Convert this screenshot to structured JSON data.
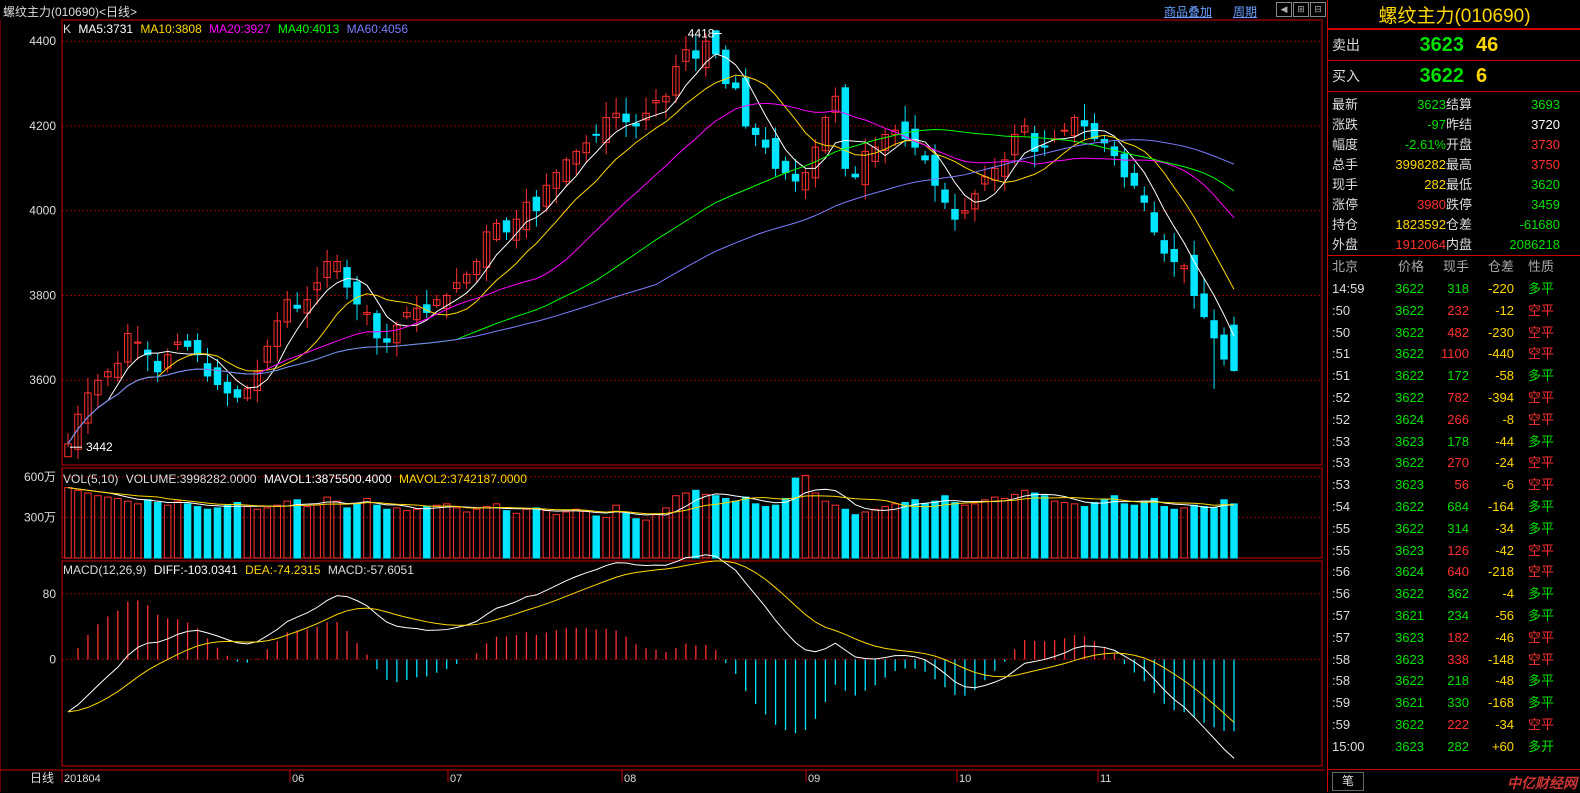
{
  "title": "螺纹主力(010690)<日线>",
  "nav": {
    "overlay_label": "商品叠加",
    "period_label": "周期"
  },
  "colors": {
    "up": "#ff3030",
    "down": "#00e5ff",
    "ma5": "#ffffff",
    "ma10": "#ffd700",
    "ma20": "#ff00ff",
    "ma40": "#00ff00",
    "ma60": "#7b7bff",
    "grid": "#8b0000"
  },
  "ma_legend": {
    "k": "K",
    "ma5": "MA5:3731",
    "ma10": "MA10:3808",
    "ma20": "MA20:3927",
    "ma40": "MA40:4013",
    "ma60": "MA60:4056"
  },
  "vol_legend": {
    "name": "VOL(5,10)",
    "volume": "VOLUME:3998282.0000",
    "mavol1": "MAVOL1:3875500.4000",
    "mavol2": "MAVOL2:3742187.0000"
  },
  "macd_legend": {
    "name": "MACD(12,26,9)",
    "diff": "DIFF:-103.0341",
    "dea": "DEA:-74.2315",
    "macd": "MACD:-57.6051"
  },
  "axes": {
    "price_ticks": [
      "4400",
      "4200",
      "4000",
      "3800",
      "3600"
    ],
    "vol_ticks": [
      "600万",
      "300万"
    ],
    "macd_ticks": [
      "80",
      "0"
    ],
    "period_label": "日线",
    "x_labels": [
      "201804",
      "06",
      "07",
      "08",
      "09",
      "10",
      "11"
    ]
  },
  "annotations": {
    "high": "4418",
    "low": "3442"
  },
  "chart_data": {
    "type": "candlestick",
    "price_ylim": [
      3400,
      4450
    ],
    "vol_ylim": [
      0,
      6500000
    ],
    "macd_ylim": [
      -130,
      120
    ],
    "closes": [
      3450,
      3520,
      3570,
      3600,
      3620,
      3640,
      3710,
      3690,
      3660,
      3620,
      3660,
      3690,
      3680,
      3660,
      3610,
      3590,
      3570,
      3560,
      3580,
      3620,
      3680,
      3740,
      3790,
      3770,
      3790,
      3830,
      3880,
      3880,
      3820,
      3780,
      3760,
      3700,
      3690,
      3730,
      3760,
      3770,
      3760,
      3790,
      3800,
      3830,
      3850,
      3880,
      3950,
      3970,
      3950,
      3980,
      4020,
      4000,
      4060,
      4090,
      4120,
      4140,
      4160,
      4180,
      4220,
      4230,
      4210,
      4200,
      4230,
      4260,
      4270,
      4340,
      4380,
      4360,
      4400,
      4370,
      4300,
      4290,
      4200,
      4180,
      4150,
      4100,
      4090,
      4070,
      4090,
      4150,
      4220,
      4270,
      4100,
      4080,
      4140,
      4150,
      4180,
      4190,
      4170,
      4150,
      4120,
      4060,
      4020,
      3980,
      4000,
      4040,
      4080,
      4100,
      4120,
      4180,
      4200,
      4140,
      4150,
      4170,
      4190,
      4220,
      4200,
      4170,
      4160,
      4130,
      4080,
      4060,
      4020,
      3950,
      3900,
      3880,
      3870,
      3800,
      3750,
      3700,
      3650,
      3623
    ],
    "volume_m": [
      5.2,
      5.0,
      4.8,
      4.6,
      4.5,
      4.4,
      4.2,
      4.0,
      4.3,
      4.1,
      3.9,
      4.2,
      4.0,
      3.8,
      3.6,
      3.7,
      3.9,
      4.1,
      3.8,
      3.6,
      3.7,
      3.9,
      4.2,
      4.3,
      3.8,
      3.9,
      4.5,
      4.2,
      3.7,
      4.0,
      4.4,
      3.9,
      3.6,
      3.7,
      3.5,
      3.6,
      3.8,
      3.9,
      4.0,
      3.7,
      3.4,
      3.6,
      3.8,
      4.0,
      3.5,
      3.3,
      3.6,
      3.7,
      3.5,
      3.2,
      3.4,
      3.6,
      3.5,
      3.1,
      3.0,
      3.9,
      3.3,
      2.9,
      2.8,
      3.2,
      3.7,
      4.6,
      4.8,
      5.0,
      4.7,
      4.6,
      4.4,
      4.2,
      4.5,
      4.0,
      3.8,
      3.9,
      4.4,
      5.9,
      6.1,
      4.8,
      4.2,
      3.9,
      3.6,
      3.2,
      3.4,
      3.6,
      3.8,
      4.0,
      4.1,
      4.3,
      4.0,
      4.2,
      4.6,
      4.1,
      3.9,
      4.0,
      4.3,
      4.5,
      4.4,
      4.7,
      5.0,
      4.8,
      4.6,
      4.2,
      4.1,
      4.0,
      3.8,
      4.1,
      4.3,
      4.6,
      4.0,
      3.9,
      4.2,
      4.4,
      3.8,
      3.6,
      3.7,
      3.9,
      3.8,
      3.7,
      4.3,
      4.0
    ]
  },
  "quote": {
    "name": "螺纹主力(010690)",
    "sell_label": "卖出",
    "sell_price": "3623",
    "sell_qty": "46",
    "buy_label": "买入",
    "buy_price": "3622",
    "buy_qty": "6",
    "fields": [
      [
        "最新",
        "3623",
        "结算",
        "3693"
      ],
      [
        "涨跌",
        "-97",
        "昨结",
        "3720"
      ],
      [
        "幅度",
        "-2.61%",
        "开盘",
        "3730"
      ],
      [
        "总手",
        "3998282",
        "最高",
        "3750"
      ],
      [
        "现手",
        "282",
        "最低",
        "3620"
      ],
      [
        "涨停",
        "3980",
        "跌停",
        "3459"
      ],
      [
        "持仓",
        "1823592",
        "仓差",
        "-61680"
      ],
      [
        "外盘",
        "1912064",
        "内盘",
        "2086218"
      ]
    ],
    "field_colors": [
      [
        "#00e000",
        "#00e000"
      ],
      [
        "#00e000",
        "#ffffff"
      ],
      [
        "#00e000",
        "#ff3030"
      ],
      [
        "#ffd700",
        "#ff3030"
      ],
      [
        "#ffd700",
        "#00e000"
      ],
      [
        "#ff3030",
        "#00e000"
      ],
      [
        "#ffd700",
        "#00e000"
      ],
      [
        "#ff3030",
        "#00e000"
      ]
    ]
  },
  "ticks_header": [
    "北京",
    "价格",
    "现手",
    "仓差",
    "性质"
  ],
  "ticks": [
    [
      "14:59",
      "3622",
      "318",
      "-220",
      "多平"
    ],
    [
      ":50",
      "3622",
      "232",
      "-12",
      "空平"
    ],
    [
      ":50",
      "3622",
      "482",
      "-230",
      "空平"
    ],
    [
      ":51",
      "3622",
      "1100",
      "-440",
      "空平"
    ],
    [
      ":51",
      "3622",
      "172",
      "-58",
      "多平"
    ],
    [
      ":52",
      "3622",
      "782",
      "-394",
      "空平"
    ],
    [
      ":52",
      "3624",
      "266",
      "-8",
      "空平"
    ],
    [
      ":53",
      "3623",
      "178",
      "-44",
      "多平"
    ],
    [
      ":53",
      "3622",
      "270",
      "-24",
      "空平"
    ],
    [
      ":53",
      "3623",
      "56",
      "-6",
      "空平"
    ],
    [
      ":54",
      "3622",
      "684",
      "-164",
      "多平"
    ],
    [
      ":55",
      "3622",
      "314",
      "-34",
      "多平"
    ],
    [
      ":55",
      "3623",
      "126",
      "-42",
      "空平"
    ],
    [
      ":56",
      "3624",
      "640",
      "-218",
      "空平"
    ],
    [
      ":56",
      "3622",
      "362",
      "-4",
      "多平"
    ],
    [
      ":57",
      "3621",
      "234",
      "-56",
      "多平"
    ],
    [
      ":57",
      "3623",
      "182",
      "-46",
      "空平"
    ],
    [
      ":58",
      "3623",
      "338",
      "-148",
      "空平"
    ],
    [
      ":58",
      "3622",
      "218",
      "-48",
      "多平"
    ],
    [
      ":59",
      "3621",
      "330",
      "-168",
      "多平"
    ],
    [
      ":59",
      "3622",
      "222",
      "-34",
      "空平"
    ],
    [
      "15:00",
      "3623",
      "282",
      "+60",
      "多开"
    ]
  ],
  "footer": {
    "tab": "笔",
    "watermark": "中亿财经网"
  }
}
